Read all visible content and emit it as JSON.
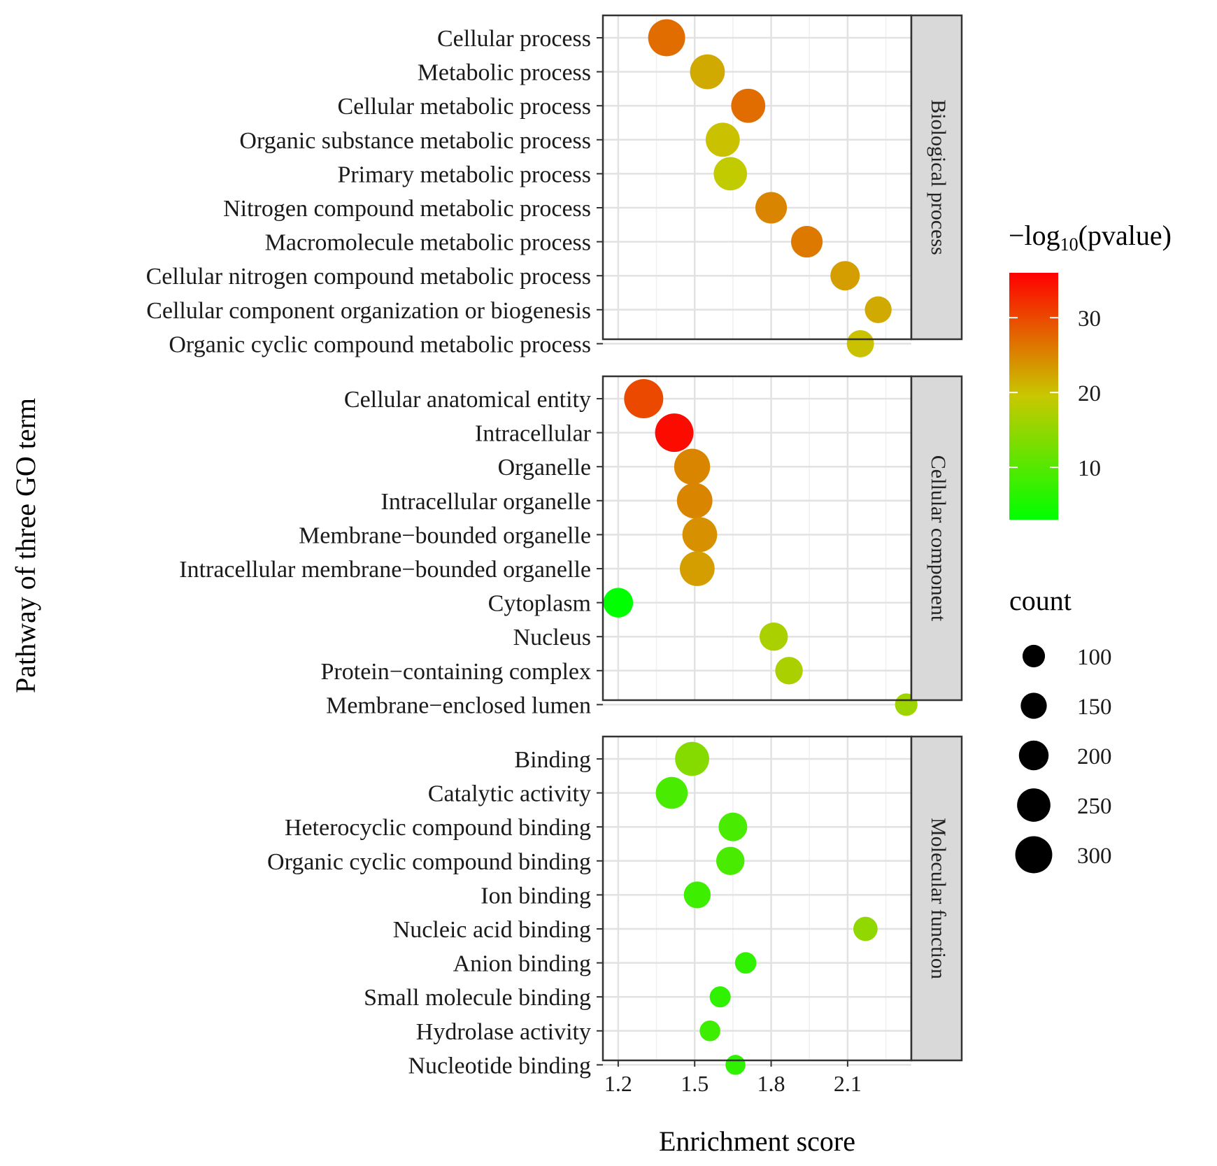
{
  "chart_data": {
    "type": "scatter",
    "xlabel": "Enrichment score",
    "ylabel": "Pathway of three GO term",
    "xlim": [
      1.14,
      2.35
    ],
    "xticks": [
      1.2,
      1.5,
      1.8,
      2.1
    ],
    "xtick_labels": [
      "1.2",
      "1.5",
      "1.8",
      "2.1"
    ],
    "grid": true,
    "color_legend": {
      "title_main": "−log",
      "title_sub": "10",
      "title_tail": "(pvalue)",
      "min": 3,
      "max": 36,
      "low_color": "#00ff00",
      "mid_color": "#c8c800",
      "high_color": "#ff0000",
      "ticks": [
        10,
        20,
        30
      ],
      "tick_labels": [
        "10",
        "20",
        "30"
      ]
    },
    "size_legend": {
      "title": "count",
      "values": [
        100,
        150,
        200,
        250,
        300
      ],
      "labels": [
        "100",
        "150",
        "200",
        "250",
        "300"
      ]
    },
    "facets": [
      {
        "name": "Biological process",
        "terms": [
          {
            "term": "Cellular process",
            "x": 1.39,
            "count": 300,
            "p": 27
          },
          {
            "term": "Metabolic process",
            "x": 1.55,
            "count": 270,
            "p": 22
          },
          {
            "term": "Cellular metabolic process",
            "x": 1.71,
            "count": 260,
            "p": 27
          },
          {
            "term": "Organic substance metabolic process",
            "x": 1.61,
            "count": 260,
            "p": 20
          },
          {
            "term": "Primary metabolic process",
            "x": 1.64,
            "count": 250,
            "p": 19
          },
          {
            "term": "Nitrogen compound metabolic process",
            "x": 1.8,
            "count": 225,
            "p": 25
          },
          {
            "term": "Macromolecule metabolic process",
            "x": 1.94,
            "count": 225,
            "p": 26
          },
          {
            "term": "Cellular nitrogen compound metabolic process",
            "x": 2.09,
            "count": 195,
            "p": 23
          },
          {
            "term": "Cellular component organization or biogenesis",
            "x": 2.22,
            "count": 160,
            "p": 22
          },
          {
            "term": "Organic cyclic compound metabolic process",
            "x": 2.15,
            "count": 165,
            "p": 20
          }
        ]
      },
      {
        "name": "Cellular component",
        "terms": [
          {
            "term": "Cellular anatomical entity",
            "x": 1.3,
            "count": 330,
            "p": 30
          },
          {
            "term": "Intracellular",
            "x": 1.42,
            "count": 320,
            "p": 35
          },
          {
            "term": "Organelle",
            "x": 1.49,
            "count": 285,
            "p": 25
          },
          {
            "term": "Intracellular organelle",
            "x": 1.5,
            "count": 280,
            "p": 25
          },
          {
            "term": "Membrane−bounded organelle",
            "x": 1.52,
            "count": 270,
            "p": 24
          },
          {
            "term": "Intracellular membrane−bounded organelle",
            "x": 1.51,
            "count": 270,
            "p": 23
          },
          {
            "term": "Cytoplasm",
            "x": 1.2,
            "count": 200,
            "p": 3
          },
          {
            "term": "Nucleus",
            "x": 1.81,
            "count": 180,
            "p": 17
          },
          {
            "term": "Protein−containing complex",
            "x": 1.87,
            "count": 170,
            "p": 17
          },
          {
            "term": "Membrane−enclosed lumen",
            "x": 2.33,
            "count": 100,
            "p": 16
          }
        ]
      },
      {
        "name": "Molecular function",
        "terms": [
          {
            "term": "Binding",
            "x": 1.49,
            "count": 260,
            "p": 14
          },
          {
            "term": "Catalytic activity",
            "x": 1.41,
            "count": 230,
            "p": 9
          },
          {
            "term": "Heterocyclic compound binding",
            "x": 1.65,
            "count": 185,
            "p": 9
          },
          {
            "term": "Organic cyclic compound binding",
            "x": 1.64,
            "count": 180,
            "p": 9
          },
          {
            "term": "Ion binding",
            "x": 1.51,
            "count": 160,
            "p": 8
          },
          {
            "term": "Nucleic acid binding",
            "x": 2.17,
            "count": 125,
            "p": 15
          },
          {
            "term": "Anion binding",
            "x": 1.7,
            "count": 85,
            "p": 7
          },
          {
            "term": "Small molecule binding",
            "x": 1.6,
            "count": 80,
            "p": 7
          },
          {
            "term": "Hydrolase activity",
            "x": 1.56,
            "count": 75,
            "p": 8
          },
          {
            "term": "Nucleotide binding",
            "x": 1.66,
            "count": 65,
            "p": 7
          }
        ]
      }
    ]
  }
}
